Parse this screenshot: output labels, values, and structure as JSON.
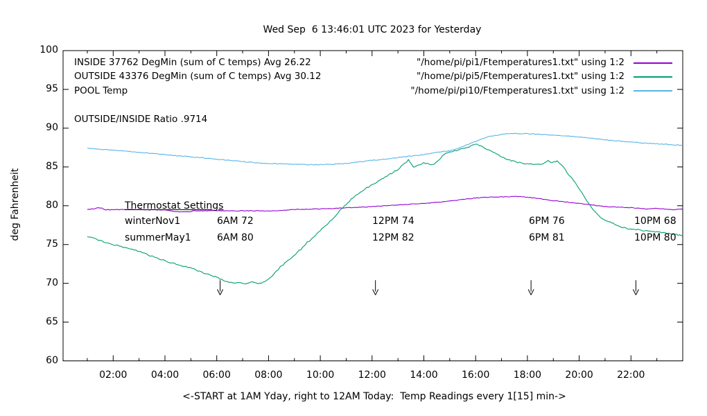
{
  "title": "Wed Sep  6 13:46:01 UTC 2023 for Yesterday",
  "colors": {
    "inside": "#9400d3",
    "outside": "#009e73",
    "pool": "#56b4e9",
    "axis": "#000000",
    "text": "#000000",
    "background": "#ffffff"
  },
  "legend": {
    "rows": [
      {
        "label": "INSIDE 37762 DegMin (sum of C temps) Avg 26.22",
        "file": "\"/home/pi/pi1/Ftemperatures1.txt\" using 1:2",
        "color": "#9400d3"
      },
      {
        "label": "OUTSIDE 43376 DegMin (sum of C temps) Avg 30.12",
        "file": "\"/home/pi/pi5/Ftemperatures1.txt\" using 1:2",
        "color": "#009e73"
      },
      {
        "label": "POOL Temp",
        "file": "\"/home/pi/pi10/Ftemperatures1.txt\" using 1:2",
        "color": "#56b4e9"
      }
    ]
  },
  "ratio_note": "OUTSIDE/INSIDE Ratio .9714",
  "thermostat": {
    "heading": "Thermostat Settings",
    "rows": [
      {
        "name": "winterNov1",
        "settings": [
          "6AM 72",
          "12PM 74",
          "6PM 76",
          "10PM 68"
        ]
      },
      {
        "name": "summerMay1",
        "settings": [
          "6AM 80",
          "12PM 82",
          "6PM 81",
          "10PM 80"
        ]
      }
    ]
  },
  "axes": {
    "ylabel": "deg Fahrenheit",
    "xlabel": "<-START at 1AM Yday, right to 12AM Today:  Temp Readings every 1[15] min->",
    "y_ticks": [
      60,
      65,
      70,
      75,
      80,
      85,
      90,
      95,
      100
    ],
    "x_major_hours": [
      2,
      4,
      6,
      8,
      10,
      12,
      14,
      16,
      18,
      20,
      22
    ],
    "x_minor_hours": [
      1,
      3,
      5,
      7,
      9,
      11,
      13,
      15,
      17,
      19,
      21,
      23
    ],
    "x_tick_labels": [
      "02:00",
      "04:00",
      "06:00",
      "08:00",
      "10:00",
      "12:00",
      "14:00",
      "16:00",
      "18:00",
      "20:00",
      "22:00"
    ]
  },
  "chart_data": {
    "type": "line",
    "title": "Wed Sep  6 13:46:01 UTC 2023 for Yesterday",
    "xlabel": "<-START at 1AM Yday, right to 12AM Today:  Temp Readings every 1[15] min->",
    "ylabel": "deg Fahrenheit",
    "x_unit": "hour of day (1 = 1AM yesterday, 24 = 12AM today)",
    "xlim": [
      0.07,
      24.01
    ],
    "ylim": [
      60,
      100
    ],
    "grid": false,
    "legend_position": "top-inside",
    "arrow_marker_hours": [
      6.13,
      12.13,
      18.14,
      22.19
    ],
    "arrow_marker_y_span": [
      70.4,
      68.5
    ],
    "series": [
      {
        "name": "INSIDE 37762 DegMin (sum of C temps) Avg 26.22",
        "color": "#9400d3",
        "jitter": 0.04,
        "points": [
          [
            1,
            79.55
          ],
          [
            1.25,
            79.6
          ],
          [
            1.4,
            79.75
          ],
          [
            1.55,
            79.7
          ],
          [
            1.7,
            79.45
          ],
          [
            2,
            79.5
          ],
          [
            3,
            79.5
          ],
          [
            4,
            79.45
          ],
          [
            4.55,
            79.2
          ],
          [
            4.9,
            79.2
          ],
          [
            5.1,
            79.35
          ],
          [
            6,
            79.35
          ],
          [
            7,
            79.35
          ],
          [
            8,
            79.35
          ],
          [
            8.6,
            79.4
          ],
          [
            8.9,
            79.5
          ],
          [
            9.5,
            79.55
          ],
          [
            10,
            79.6
          ],
          [
            10.5,
            79.65
          ],
          [
            11,
            79.75
          ],
          [
            11.5,
            79.8
          ],
          [
            12,
            79.9
          ],
          [
            12.5,
            80.0
          ],
          [
            13,
            80.1
          ],
          [
            13.5,
            80.2
          ],
          [
            14,
            80.3
          ],
          [
            14.5,
            80.45
          ],
          [
            15,
            80.6
          ],
          [
            15.5,
            80.8
          ],
          [
            16,
            81.0
          ],
          [
            16.5,
            81.1
          ],
          [
            17,
            81.15
          ],
          [
            17.5,
            81.2
          ],
          [
            17.8,
            81.15
          ],
          [
            18,
            81.1
          ],
          [
            18.3,
            81.0
          ],
          [
            18.6,
            80.85
          ],
          [
            19,
            80.65
          ],
          [
            19.3,
            80.55
          ],
          [
            19.6,
            80.45
          ],
          [
            20,
            80.3
          ],
          [
            20.4,
            80.15
          ],
          [
            20.7,
            80.0
          ],
          [
            21,
            79.9
          ],
          [
            21.4,
            79.85
          ],
          [
            21.7,
            79.8
          ],
          [
            22,
            79.75
          ],
          [
            22.3,
            79.65
          ],
          [
            22.6,
            79.6
          ],
          [
            23,
            79.65
          ],
          [
            23.3,
            79.55
          ],
          [
            23.6,
            79.5
          ],
          [
            24,
            79.55
          ]
        ]
      },
      {
        "name": "OUTSIDE 43376 DegMin (sum of C temps) Avg 30.12",
        "color": "#009e73",
        "jitter": 0.08,
        "points": [
          [
            1,
            76.1
          ],
          [
            1.5,
            75.5
          ],
          [
            2,
            75.0
          ],
          [
            2.5,
            74.6
          ],
          [
            3,
            74.1
          ],
          [
            3.5,
            73.5
          ],
          [
            4,
            72.9
          ],
          [
            4.5,
            72.4
          ],
          [
            5,
            72.0
          ],
          [
            5.5,
            71.3
          ],
          [
            6,
            70.8
          ],
          [
            6.3,
            70.3
          ],
          [
            6.6,
            70.05
          ],
          [
            6.9,
            70.1
          ],
          [
            7.1,
            69.95
          ],
          [
            7.35,
            70.25
          ],
          [
            7.6,
            69.95
          ],
          [
            7.8,
            70.15
          ],
          [
            8,
            70.5
          ],
          [
            8.25,
            71.4
          ],
          [
            8.5,
            72.2
          ],
          [
            8.75,
            72.9
          ],
          [
            9,
            73.6
          ],
          [
            9.25,
            74.4
          ],
          [
            9.5,
            75.3
          ],
          [
            9.75,
            75.9
          ],
          [
            10,
            76.8
          ],
          [
            10.25,
            77.6
          ],
          [
            10.5,
            78.4
          ],
          [
            10.7,
            79.2
          ],
          [
            11,
            80.2
          ],
          [
            11.25,
            81.0
          ],
          [
            11.5,
            81.6
          ],
          [
            11.75,
            82.2
          ],
          [
            12,
            82.7
          ],
          [
            12.5,
            83.7
          ],
          [
            13,
            84.7
          ],
          [
            13.25,
            85.4
          ],
          [
            13.4,
            85.9
          ],
          [
            13.6,
            84.9
          ],
          [
            13.8,
            85.3
          ],
          [
            14,
            85.5
          ],
          [
            14.2,
            85.4
          ],
          [
            14.4,
            85.3
          ],
          [
            14.6,
            86.0
          ],
          [
            14.85,
            86.8
          ],
          [
            15.25,
            87.1
          ],
          [
            15.75,
            87.6
          ],
          [
            16,
            88.0
          ],
          [
            16.2,
            87.7
          ],
          [
            16.5,
            87.2
          ],
          [
            16.9,
            86.5
          ],
          [
            17.2,
            86.0
          ],
          [
            17.5,
            85.7
          ],
          [
            17.8,
            85.45
          ],
          [
            18.3,
            85.35
          ],
          [
            18.6,
            85.4
          ],
          [
            18.8,
            85.8
          ],
          [
            18.95,
            85.5
          ],
          [
            19.15,
            85.8
          ],
          [
            19.35,
            85.1
          ],
          [
            19.6,
            84.0
          ],
          [
            19.85,
            83.0
          ],
          [
            20.1,
            81.7
          ],
          [
            20.4,
            80.1
          ],
          [
            20.65,
            79.1
          ],
          [
            20.9,
            78.3
          ],
          [
            21.2,
            77.9
          ],
          [
            21.5,
            77.4
          ],
          [
            21.8,
            77.1
          ],
          [
            22.2,
            76.95
          ],
          [
            22.6,
            76.75
          ],
          [
            23,
            76.6
          ],
          [
            23.4,
            76.45
          ],
          [
            23.7,
            76.3
          ],
          [
            24,
            76.15
          ]
        ]
      },
      {
        "name": "POOL Temp",
        "color": "#56b4e9",
        "jitter": 0.05,
        "points": [
          [
            1,
            87.4
          ],
          [
            2,
            87.15
          ],
          [
            3,
            86.9
          ],
          [
            4,
            86.6
          ],
          [
            5,
            86.3
          ],
          [
            6,
            86.0
          ],
          [
            6.5,
            85.85
          ],
          [
            7,
            85.7
          ],
          [
            7.5,
            85.55
          ],
          [
            8,
            85.45
          ],
          [
            8.5,
            85.4
          ],
          [
            9,
            85.35
          ],
          [
            9.5,
            85.3
          ],
          [
            10,
            85.3
          ],
          [
            10.5,
            85.35
          ],
          [
            11,
            85.45
          ],
          [
            11.5,
            85.65
          ],
          [
            12,
            85.85
          ],
          [
            12.5,
            86.0
          ],
          [
            13,
            86.2
          ],
          [
            13.5,
            86.4
          ],
          [
            14,
            86.6
          ],
          [
            14.5,
            86.85
          ],
          [
            15,
            87.1
          ],
          [
            15.5,
            87.6
          ],
          [
            16,
            88.3
          ],
          [
            16.5,
            88.9
          ],
          [
            17,
            89.2
          ],
          [
            17.4,
            89.3
          ],
          [
            18,
            89.3
          ],
          [
            18.5,
            89.2
          ],
          [
            19,
            89.1
          ],
          [
            19.5,
            89.0
          ],
          [
            20,
            88.85
          ],
          [
            20.5,
            88.7
          ],
          [
            21,
            88.5
          ],
          [
            21.5,
            88.35
          ],
          [
            22,
            88.2
          ],
          [
            22.5,
            88.1
          ],
          [
            23,
            88.0
          ],
          [
            23.5,
            87.9
          ],
          [
            24,
            87.8
          ]
        ]
      }
    ]
  }
}
